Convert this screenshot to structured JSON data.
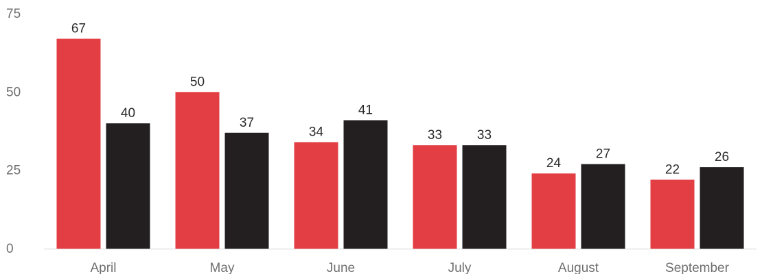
{
  "chart_data": {
    "type": "bar",
    "categories": [
      "April",
      "May",
      "June",
      "July",
      "August",
      "September"
    ],
    "series": [
      {
        "values": [
          67,
          50,
          34,
          33,
          24,
          22
        ],
        "color": "#e23e44"
      },
      {
        "values": [
          40,
          37,
          41,
          33,
          27,
          26
        ],
        "color": "#231f20"
      }
    ],
    "yticks": [
      0,
      25,
      50,
      75
    ],
    "ylim": [
      0,
      75
    ],
    "grid": false,
    "legend": "none",
    "title": "",
    "xlabel": "",
    "ylabel": ""
  },
  "colors": {
    "background": "#ffffff",
    "axis_line": "#e6e6e6",
    "tick_text": "#6f6f6f",
    "value_text": "#2a2a2a"
  }
}
